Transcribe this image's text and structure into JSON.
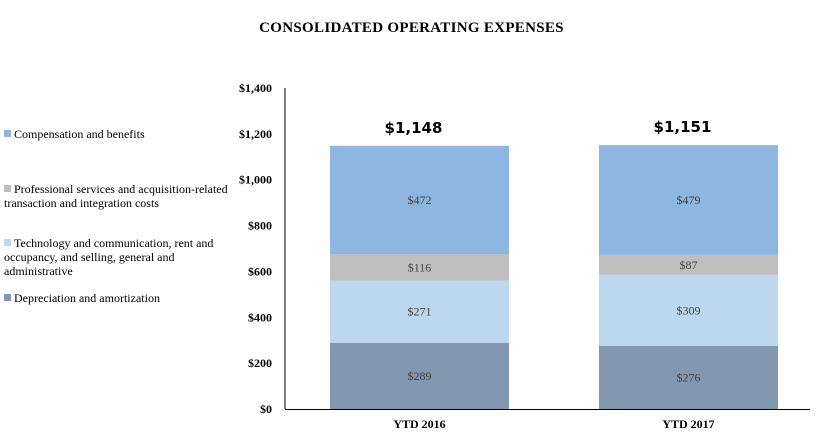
{
  "chart_data": {
    "type": "bar",
    "stacked": true,
    "title": "CONSOLIDATED OPERATING EXPENSES",
    "xlabel": "",
    "ylabel": "",
    "categories": [
      "YTD 2016",
      "YTD 2017"
    ],
    "ylim": [
      0,
      1400
    ],
    "yticks": [
      "$0",
      "$200",
      "$400",
      "$600",
      "$800",
      "$1,000",
      "$1,200",
      "$1,400"
    ],
    "ytick_values": [
      0,
      200,
      400,
      600,
      800,
      1000,
      1200,
      1400
    ],
    "grid": false,
    "legend_position": "left",
    "series": [
      {
        "name": "Depreciation and amortization",
        "values": [
          289,
          276
        ],
        "labels": [
          "$289",
          "$276"
        ],
        "color": "#8497b0"
      },
      {
        "name": "Technology and communication, rent and occupancy, and selling, general and administrative",
        "values": [
          271,
          309
        ],
        "labels": [
          "$271",
          "$309"
        ],
        "color": "#bdd7ee"
      },
      {
        "name": "Professional services and acquisition-related transaction and integration costs",
        "values": [
          116,
          87
        ],
        "labels": [
          "$116",
          "$87"
        ],
        "color": "#bfbfbf"
      },
      {
        "name": "Compensation and benefits",
        "values": [
          472,
          479
        ],
        "labels": [
          "$472",
          "$479"
        ],
        "color": "#8db6e0"
      }
    ],
    "totals": [
      "$1,148",
      "$1,151"
    ]
  }
}
